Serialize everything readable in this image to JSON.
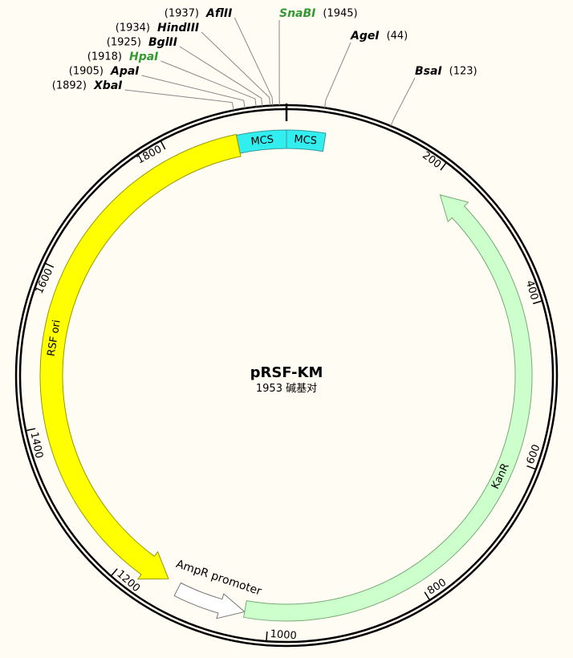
{
  "map": {
    "name": "pRSF-KM",
    "size": 1953,
    "size_unit": "碱基对",
    "ticks": [
      200,
      400,
      600,
      800,
      1000,
      1200,
      1400,
      1600,
      1800
    ],
    "features": [
      {
        "label": "MCS",
        "start": 1889,
        "end": 1953,
        "direction": "forward",
        "arrow": false,
        "color": "#33eeee",
        "stroke": "#339999"
      },
      {
        "label": "MCS",
        "start": 0,
        "end": 50,
        "direction": "forward",
        "arrow": false,
        "color": "#33eeee",
        "stroke": "#339999"
      },
      {
        "label": "RSF ori",
        "start": 1889,
        "end": 1140,
        "direction": "reverse",
        "arrow": true,
        "color": "#ffff00",
        "stroke": "#999900"
      },
      {
        "label": "AmpR promoter",
        "start": 1123,
        "end": 1031,
        "direction": "reverse",
        "arrow": true,
        "color": "#ffffff",
        "stroke": "#777777"
      },
      {
        "label": "KanR",
        "start": 1031,
        "end": 219,
        "direction": "reverse",
        "arrow": true,
        "color": "#ccffcc",
        "stroke": "#77aa77"
      }
    ],
    "sites": [
      {
        "name": "AflII",
        "position": 1937,
        "position_label": "(1937)",
        "color": "#000000"
      },
      {
        "name": "HindIII",
        "position": 1934,
        "position_label": "(1934)",
        "color": "#000000"
      },
      {
        "name": "BglII",
        "position": 1925,
        "position_label": "(1925)",
        "color": "#000000"
      },
      {
        "name": "HpaI",
        "position": 1918,
        "position_label": "(1918)",
        "color": "#339933"
      },
      {
        "name": "ApaI",
        "position": 1905,
        "position_label": "(1905)",
        "color": "#000000"
      },
      {
        "name": "XbaI",
        "position": 1892,
        "position_label": "(1892)",
        "color": "#000000"
      },
      {
        "name": "SnaBI",
        "position": 1945,
        "position_label": "(1945)",
        "color": "#339933"
      },
      {
        "name": "AgeI",
        "position": 44,
        "position_label": "(44)",
        "color": "#000000"
      },
      {
        "name": "BsaI",
        "position": 123,
        "position_label": "(123)",
        "color": "#000000"
      }
    ]
  }
}
